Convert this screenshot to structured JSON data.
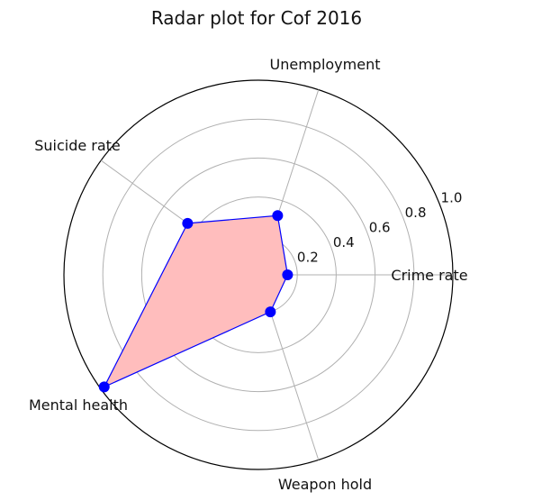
{
  "chart_data": {
    "type": "radar",
    "title": "Radar plot for Cof 2016",
    "axes": [
      "Crime rate",
      "Unemployment",
      "Suicide rate",
      "Mental health",
      "Weapon hold"
    ],
    "values": [
      0.15,
      0.32,
      0.45,
      0.98,
      0.2
    ],
    "rlim": [
      0,
      1.0
    ],
    "r_ticks": [
      "0.2",
      "0.4",
      "0.6",
      "0.8",
      "1.0"
    ],
    "grid": true,
    "colors": {
      "line": "#0000ff",
      "fill": "#ffbdbd",
      "marker": "#0000ff",
      "grid": "#b0b0b0"
    }
  }
}
